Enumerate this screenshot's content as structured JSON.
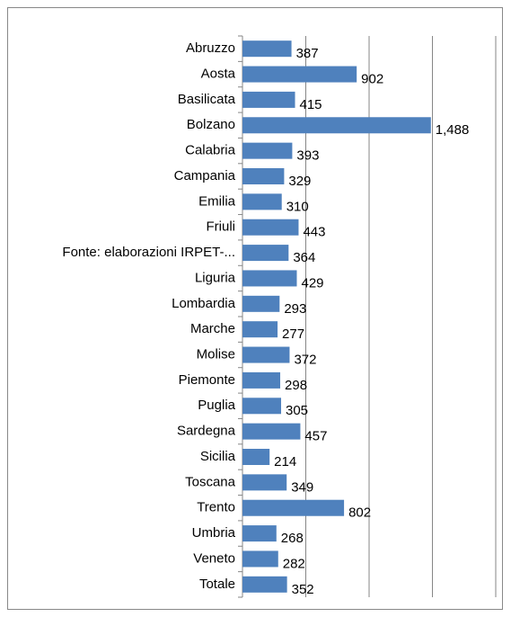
{
  "chart_data": {
    "type": "bar",
    "orientation": "horizontal",
    "categories": [
      "Abruzzo",
      "Aosta",
      "Basilicata",
      "Bolzano",
      "Calabria",
      "Campania",
      "Emilia",
      "Friuli",
      "Fonte: elaborazioni IRPET-...",
      "Liguria",
      "Lombardia",
      "Marche",
      "Molise",
      "Piemonte",
      "Puglia",
      "Sardegna",
      "Sicilia",
      "Toscana",
      "Trento",
      "Umbria",
      "Veneto",
      "Totale"
    ],
    "values": [
      387,
      902,
      415,
      1488,
      393,
      329,
      310,
      443,
      364,
      429,
      293,
      277,
      372,
      298,
      305,
      457,
      214,
      349,
      802,
      268,
      282,
      352
    ],
    "value_labels": [
      "387",
      "902",
      "415",
      "1,488",
      "393",
      "329",
      "310",
      "443",
      "364",
      "429",
      "293",
      "277",
      "372",
      "298",
      "305",
      "457",
      "214",
      "349",
      "802",
      "268",
      "282",
      "352"
    ],
    "color": "#4f81bd",
    "xlim": [
      0,
      2000
    ],
    "xticks": [
      0,
      500,
      1000,
      1500,
      2000
    ],
    "grid": true
  }
}
